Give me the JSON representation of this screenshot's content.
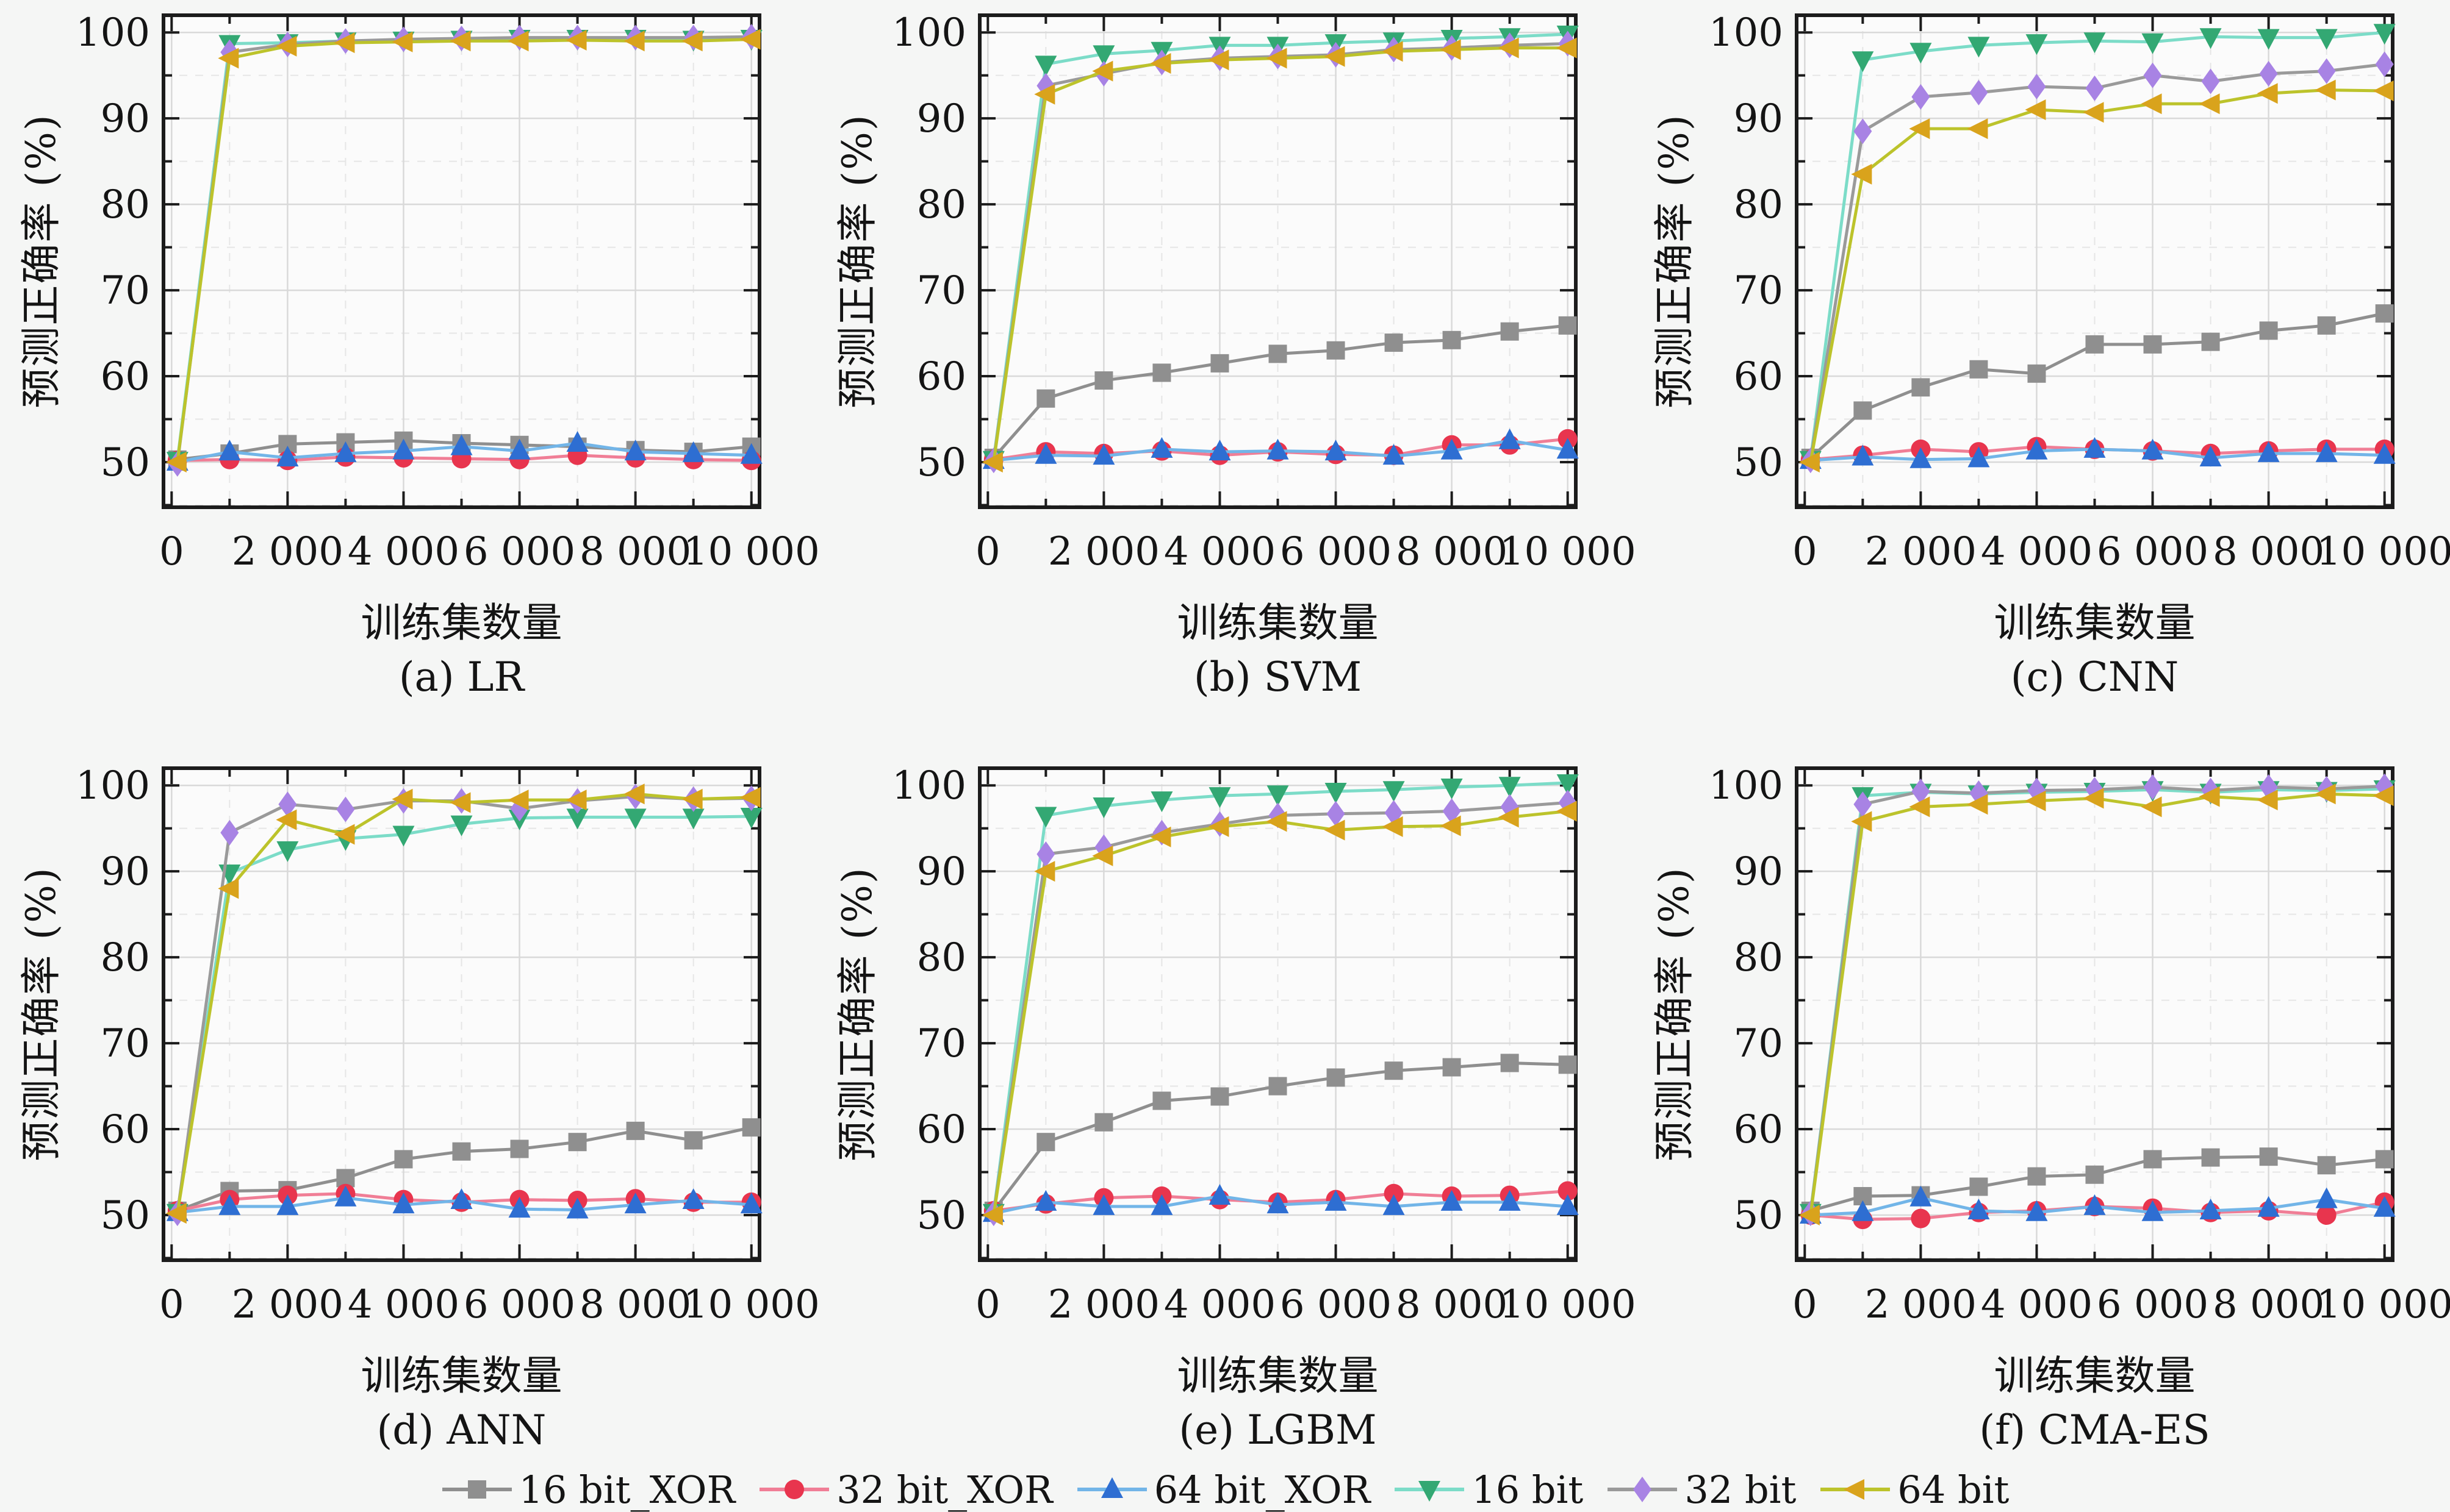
{
  "figure": {
    "ylabel": "预测正确率 (%)",
    "xlabel": "训练集数量",
    "x_tick_labels": [
      "0",
      "2 000",
      "4 000",
      "6 000",
      "8 000",
      "10 000"
    ],
    "y_tick_labels": [
      "50",
      "60",
      "70",
      "80",
      "90",
      "100"
    ],
    "x_major_ticks": [
      0,
      2000,
      4000,
      6000,
      8000,
      10000
    ],
    "x_minor_ticks": [
      1000,
      3000,
      5000,
      7000,
      9000
    ],
    "y_major_ticks": [
      50,
      60,
      70,
      80,
      90,
      100
    ],
    "y_minor_ticks": [
      45,
      55,
      65,
      75,
      85,
      95
    ],
    "x_range": [
      -140,
      10140
    ],
    "y_range": [
      44.75,
      102.0
    ],
    "grid_on": true,
    "legend_position": "bottom-center",
    "background_color": "#f5f6f5",
    "plot_background_color": "#fbfbfb",
    "major_grid_color": "#d9d9d9",
    "minor_grid_color": "#e6e6e6",
    "spine_color": "#1c1c1c"
  },
  "legend": [
    {
      "label": "16 bit_XOR",
      "marker": "square",
      "marker_color": "#8f8f8f",
      "line_color": "#8f8f8f"
    },
    {
      "label": "32 bit_XOR",
      "marker": "circle",
      "marker_color": "#e8354e",
      "line_color": "#f07e96"
    },
    {
      "label": "64 bit_XOR",
      "marker": "triangle-up",
      "marker_color": "#2e6ed2",
      "line_color": "#72b5e8"
    },
    {
      "label": "16 bit",
      "marker": "triangle-down",
      "marker_color": "#33a873",
      "line_color": "#7cdcc8"
    },
    {
      "label": "32 bit",
      "marker": "diamond",
      "marker_color": "#a883e4",
      "line_color": "#9a9a9a"
    },
    {
      "label": "64 bit",
      "marker": "triangle-left",
      "marker_color": "#d9a31c",
      "line_color": "#bcc32b"
    }
  ],
  "chart_data": [
    {
      "type": "line",
      "title": "(a) LR",
      "x": [
        100,
        1000,
        2000,
        3000,
        4000,
        5000,
        6000,
        7000,
        8000,
        9000,
        10000
      ],
      "series": [
        {
          "name": "16 bit_XOR",
          "values": [
            50.3,
            51.0,
            52.1,
            52.3,
            52.5,
            52.2,
            52.0,
            51.8,
            51.4,
            51.2,
            51.8
          ]
        },
        {
          "name": "32 bit_XOR",
          "values": [
            50.2,
            50.3,
            50.2,
            50.6,
            50.5,
            50.4,
            50.3,
            50.8,
            50.5,
            50.3,
            50.2
          ]
        },
        {
          "name": "64 bit_XOR",
          "values": [
            50.0,
            51.2,
            50.5,
            51.0,
            51.3,
            51.8,
            51.3,
            52.2,
            51.2,
            51.0,
            50.8
          ]
        },
        {
          "name": "16 bit",
          "values": [
            50.2,
            98.7,
            98.8,
            99.0,
            99.1,
            99.2,
            99.3,
            99.3,
            99.3,
            99.2,
            99.3
          ]
        },
        {
          "name": "32 bit",
          "values": [
            49.8,
            97.7,
            98.6,
            99.0,
            99.2,
            99.3,
            99.4,
            99.4,
            99.4,
            99.4,
            99.5
          ]
        },
        {
          "name": "64 bit",
          "values": [
            50.0,
            97.0,
            98.4,
            98.8,
            98.9,
            99.0,
            99.0,
            99.1,
            99.0,
            99.0,
            99.2
          ]
        }
      ]
    },
    {
      "type": "line",
      "title": "(b) SVM",
      "x": [
        100,
        1000,
        2000,
        3000,
        4000,
        5000,
        6000,
        7000,
        8000,
        9000,
        10000
      ],
      "series": [
        {
          "name": "16 bit_XOR",
          "values": [
            50.5,
            57.4,
            59.5,
            60.4,
            61.5,
            62.6,
            63.0,
            63.9,
            64.2,
            65.2,
            65.9
          ]
        },
        {
          "name": "32 bit_XOR",
          "values": [
            50.3,
            51.2,
            51.0,
            51.3,
            50.8,
            51.2,
            50.9,
            50.8,
            52.0,
            52.0,
            52.7
          ]
        },
        {
          "name": "64 bit_XOR",
          "values": [
            50.2,
            50.8,
            50.7,
            51.5,
            51.2,
            51.3,
            51.2,
            50.7,
            51.3,
            52.5,
            51.4
          ]
        },
        {
          "name": "16 bit",
          "values": [
            50.3,
            96.3,
            97.5,
            97.9,
            98.5,
            98.5,
            98.8,
            99.0,
            99.3,
            99.5,
            99.8
          ]
        },
        {
          "name": "32 bit",
          "values": [
            50.2,
            93.8,
            95.2,
            96.5,
            97.0,
            97.2,
            97.4,
            98.0,
            98.2,
            98.5,
            98.7
          ]
        },
        {
          "name": "64 bit",
          "values": [
            50.0,
            92.8,
            95.5,
            96.4,
            96.8,
            97.0,
            97.2,
            97.8,
            98.0,
            98.2,
            98.2
          ]
        }
      ]
    },
    {
      "type": "line",
      "title": "(c) CNN",
      "x": [
        100,
        1000,
        2000,
        3000,
        4000,
        5000,
        6000,
        7000,
        8000,
        9000,
        10000
      ],
      "series": [
        {
          "name": "16 bit_XOR",
          "values": [
            50.5,
            56.0,
            58.7,
            60.8,
            60.3,
            63.7,
            63.7,
            64.0,
            65.3,
            65.9,
            67.3
          ]
        },
        {
          "name": "32 bit_XOR",
          "values": [
            50.3,
            50.8,
            51.5,
            51.2,
            51.8,
            51.5,
            51.3,
            51.0,
            51.3,
            51.5,
            51.5
          ]
        },
        {
          "name": "64 bit_XOR",
          "values": [
            50.2,
            50.6,
            50.3,
            50.4,
            51.3,
            51.5,
            51.3,
            50.5,
            51.0,
            51.0,
            50.8
          ]
        },
        {
          "name": "16 bit",
          "values": [
            50.3,
            96.8,
            97.8,
            98.5,
            98.8,
            99.0,
            98.9,
            99.5,
            99.4,
            99.4,
            100.0
          ]
        },
        {
          "name": "32 bit",
          "values": [
            50.2,
            88.5,
            92.5,
            93.0,
            93.7,
            93.5,
            95.0,
            94.3,
            95.2,
            95.5,
            96.3
          ]
        },
        {
          "name": "64 bit",
          "values": [
            50.0,
            83.5,
            88.8,
            88.8,
            91.0,
            90.7,
            91.7,
            91.7,
            92.9,
            93.3,
            93.2
          ]
        }
      ]
    },
    {
      "type": "line",
      "title": "(d) ANN",
      "x": [
        100,
        1000,
        2000,
        3000,
        4000,
        5000,
        6000,
        7000,
        8000,
        9000,
        10000
      ],
      "series": [
        {
          "name": "16 bit_XOR",
          "values": [
            50.5,
            52.8,
            52.9,
            54.3,
            56.5,
            57.4,
            57.7,
            58.5,
            59.8,
            58.7,
            60.2
          ]
        },
        {
          "name": "32 bit_XOR",
          "values": [
            50.5,
            51.8,
            52.3,
            52.5,
            51.8,
            51.5,
            51.8,
            51.7,
            51.9,
            51.5,
            51.5
          ]
        },
        {
          "name": "64 bit_XOR",
          "values": [
            50.3,
            51.0,
            51.0,
            52.0,
            51.2,
            51.7,
            50.7,
            50.6,
            51.2,
            51.7,
            51.2
          ]
        },
        {
          "name": "16 bit",
          "values": [
            50.3,
            89.8,
            92.5,
            93.8,
            94.3,
            95.5,
            96.2,
            96.3,
            96.3,
            96.3,
            96.4
          ]
        },
        {
          "name": "32 bit",
          "values": [
            50.2,
            94.5,
            97.8,
            97.2,
            98.2,
            98.2,
            97.3,
            98.2,
            98.7,
            98.4,
            98.5
          ]
        },
        {
          "name": "64 bit",
          "values": [
            50.2,
            88.0,
            96.0,
            94.3,
            98.4,
            98.0,
            98.3,
            98.3,
            99.0,
            98.4,
            98.6
          ]
        }
      ]
    },
    {
      "type": "line",
      "title": "(e) LGBM",
      "x": [
        100,
        1000,
        2000,
        3000,
        4000,
        5000,
        6000,
        7000,
        8000,
        9000,
        10000
      ],
      "series": [
        {
          "name": "16 bit_XOR",
          "values": [
            50.5,
            58.5,
            60.8,
            63.3,
            63.8,
            65.0,
            66.0,
            66.8,
            67.2,
            67.7,
            67.5
          ]
        },
        {
          "name": "32 bit_XOR",
          "values": [
            50.5,
            51.3,
            52.0,
            52.2,
            51.8,
            51.5,
            51.8,
            52.5,
            52.2,
            52.3,
            52.8
          ]
        },
        {
          "name": "64 bit_XOR",
          "values": [
            50.2,
            51.5,
            51.0,
            51.0,
            52.2,
            51.2,
            51.5,
            51.0,
            51.5,
            51.5,
            51.0
          ]
        },
        {
          "name": "16 bit",
          "values": [
            50.3,
            96.5,
            97.6,
            98.3,
            98.8,
            99.0,
            99.3,
            99.5,
            99.8,
            100.0,
            100.3
          ]
        },
        {
          "name": "32 bit",
          "values": [
            50.2,
            92.0,
            92.8,
            94.5,
            95.5,
            96.5,
            96.7,
            96.8,
            97.0,
            97.5,
            98.0
          ]
        },
        {
          "name": "64 bit",
          "values": [
            50.0,
            90.0,
            91.8,
            94.0,
            95.2,
            95.8,
            94.8,
            95.2,
            95.3,
            96.3,
            97.0
          ]
        }
      ]
    },
    {
      "type": "line",
      "title": "(f) CMA-ES",
      "x": [
        100,
        1000,
        2000,
        3000,
        4000,
        5000,
        6000,
        7000,
        8000,
        9000,
        10000
      ],
      "series": [
        {
          "name": "16 bit_XOR",
          "values": [
            50.5,
            52.2,
            52.3,
            53.3,
            54.5,
            54.7,
            56.5,
            56.7,
            56.8,
            55.8,
            56.5
          ]
        },
        {
          "name": "32 bit_XOR",
          "values": [
            50.0,
            49.5,
            49.6,
            50.3,
            50.5,
            51.0,
            50.8,
            50.3,
            50.5,
            50.0,
            51.5
          ]
        },
        {
          "name": "64 bit_XOR",
          "values": [
            50.0,
            50.3,
            52.0,
            50.5,
            50.3,
            51.0,
            50.3,
            50.5,
            50.8,
            51.8,
            50.8
          ]
        },
        {
          "name": "16 bit",
          "values": [
            50.3,
            98.8,
            99.2,
            99.0,
            99.2,
            99.3,
            99.5,
            99.2,
            99.5,
            99.4,
            99.6
          ]
        },
        {
          "name": "32 bit",
          "values": [
            50.2,
            97.8,
            99.3,
            99.1,
            99.4,
            99.5,
            99.8,
            99.4,
            99.8,
            99.6,
            99.9
          ]
        },
        {
          "name": "64 bit",
          "values": [
            50.0,
            95.8,
            97.5,
            97.8,
            98.2,
            98.5,
            97.5,
            98.7,
            98.3,
            99.0,
            98.8
          ]
        }
      ]
    }
  ]
}
